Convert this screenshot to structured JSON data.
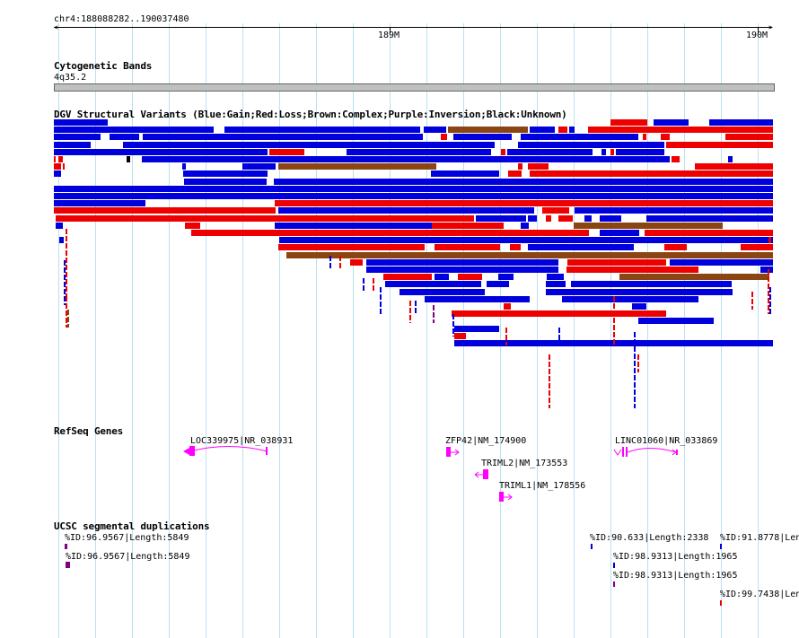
{
  "ruler": {
    "position_label": "chr4:188088282..190037480",
    "tick_labels": [
      "189M",
      "190M"
    ]
  },
  "tracks": {
    "cytoband": {
      "title": "Cytogenetic Bands",
      "band_label": "4q35.2"
    },
    "dgv": {
      "title": "DGV Structural Variants (Blue:Gain;Red:Loss;Brown:Complex;Purple:Inversion;Black:Unknown)"
    },
    "refseq": {
      "title": "RefSeq Genes",
      "genes": [
        "LOC339975|NR_038931",
        "ZFP42|NM_174900",
        "TRIML2|NM_173553",
        "TRIML1|NM_178556",
        "LINC01060|NR_033869"
      ]
    },
    "segdup": {
      "title": "UCSC segmental duplications",
      "labels": [
        "%ID:96.9567|Length:5849",
        "%ID:96.9567|Length:5849",
        "%ID:90.633|Length:2338",
        "%ID:91.8778|Len",
        "%ID:98.9313|Length:1965",
        "%ID:98.9313|Length:1965",
        "%ID:99.7438|Len"
      ]
    }
  },
  "colors": {
    "gain": "#0000dd",
    "loss": "#ee0000",
    "complex": "#8b4513",
    "inversion": "#800080",
    "unknown": "#000000",
    "gene": "#ff00ff",
    "grid": "#b9e1f0"
  }
}
